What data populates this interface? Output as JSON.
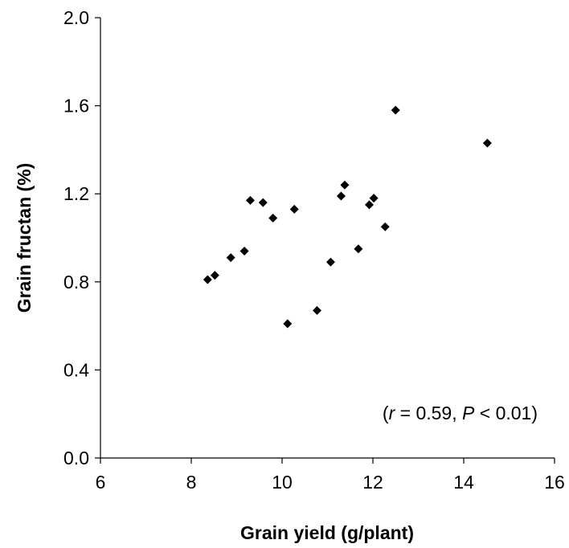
{
  "chart_data": {
    "type": "scatter",
    "xlabel": "Grain yield (g/plant)",
    "ylabel": "Grain fructan (%)",
    "xlim": [
      6,
      16
    ],
    "ylim": [
      0.0,
      2.0
    ],
    "x_ticks": [
      6,
      8,
      10,
      12,
      14,
      16
    ],
    "y_ticks": [
      0.0,
      0.4,
      0.8,
      1.2,
      1.6,
      2.0
    ],
    "x_tick_labels": [
      "6",
      "8",
      "10",
      "12",
      "14",
      "16"
    ],
    "y_tick_labels": [
      "0.0",
      "0.4",
      "0.8",
      "1.2",
      "1.6",
      "2.0"
    ],
    "grid": false,
    "marker": "diamond",
    "color": "#000000",
    "annotation": {
      "open_paren": "(",
      "r_symbol": "r",
      "r_text": " = 0.59, ",
      "p_symbol": "P",
      "p_text": " < 0.01)"
    },
    "points": [
      {
        "x": 8.36,
        "y": 0.81
      },
      {
        "x": 8.52,
        "y": 0.83
      },
      {
        "x": 8.87,
        "y": 0.91
      },
      {
        "x": 9.17,
        "y": 0.94
      },
      {
        "x": 9.3,
        "y": 1.17
      },
      {
        "x": 9.58,
        "y": 1.16
      },
      {
        "x": 9.8,
        "y": 1.09
      },
      {
        "x": 10.12,
        "y": 0.61
      },
      {
        "x": 10.27,
        "y": 1.13
      },
      {
        "x": 10.77,
        "y": 0.67
      },
      {
        "x": 11.07,
        "y": 0.89
      },
      {
        "x": 11.3,
        "y": 1.19
      },
      {
        "x": 11.38,
        "y": 1.24
      },
      {
        "x": 11.68,
        "y": 0.95
      },
      {
        "x": 11.92,
        "y": 1.15
      },
      {
        "x": 12.02,
        "y": 1.18
      },
      {
        "x": 12.27,
        "y": 1.05
      },
      {
        "x": 12.5,
        "y": 1.58
      },
      {
        "x": 14.52,
        "y": 1.43
      }
    ]
  }
}
